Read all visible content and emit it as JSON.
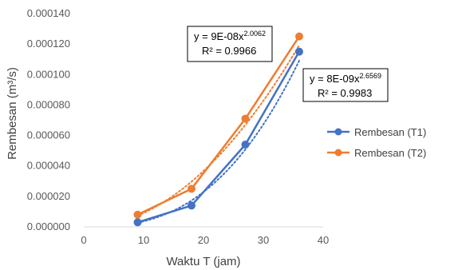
{
  "chart_data": {
    "type": "scatter",
    "xlabel": "Waktu T (jam)",
    "ylabel": "Rembesan (m³/s)",
    "xlim": [
      0,
      40
    ],
    "ylim": [
      0,
      0.00014
    ],
    "xticks": [
      "0",
      "10",
      "20",
      "30",
      "40"
    ],
    "yticks": [
      "0.000000",
      "0.000020",
      "0.000040",
      "0.000060",
      "0.000080",
      "0.000100",
      "0.000120",
      "0.000140"
    ],
    "grid": false,
    "legend_position": "right",
    "series": [
      {
        "name": "Rembesan (T1)",
        "color": "#4472C4",
        "x": [
          9,
          18,
          27,
          36
        ],
        "y": [
          3e-06,
          1.4e-05,
          5.4e-05,
          0.000115
        ],
        "trendline": {
          "type": "power",
          "coef": 8e-09,
          "exponent": 2.6569,
          "equation_prefix": "y = 8E-09x",
          "equation_exponent": "2.6569",
          "r2_label": "R² = 0.9983"
        }
      },
      {
        "name": "Rembesan (T2)",
        "color": "#ED7D31",
        "x": [
          9,
          18,
          27,
          36
        ],
        "y": [
          8e-06,
          2.5e-05,
          7.1e-05,
          0.000125
        ],
        "trendline": {
          "type": "power",
          "coef": 9e-08,
          "exponent": 2.0062,
          "equation_prefix": "y = 9E-08x",
          "equation_exponent": "2.0062",
          "r2_label": "R² = 0.9966"
        }
      }
    ]
  }
}
